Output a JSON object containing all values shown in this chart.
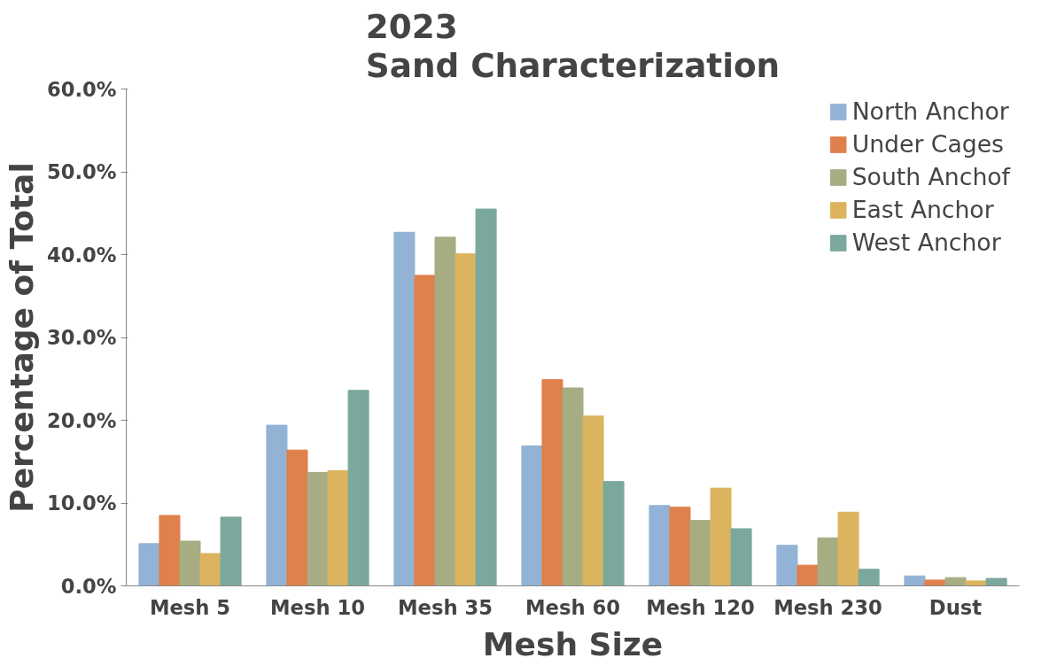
{
  "chart_data": {
    "type": "bar",
    "title": "2023\nSand Characterization",
    "xlabel": "Mesh Size",
    "ylabel": "Percentage of Total",
    "categories": [
      "Mesh 5",
      "Mesh 10",
      "Mesh 35",
      "Mesh 60",
      "Mesh 120",
      "Mesh 230",
      "Dust"
    ],
    "series": [
      {
        "name": "North Anchor",
        "color": "#93b3d6",
        "values": [
          5.1,
          19.4,
          42.7,
          16.9,
          9.7,
          4.9,
          1.2
        ]
      },
      {
        "name": "Under Cages",
        "color": "#e0804a",
        "values": [
          8.5,
          16.4,
          37.5,
          24.9,
          9.5,
          2.5,
          0.7
        ]
      },
      {
        "name": "South Anchof",
        "color": "#a6ad82",
        "values": [
          5.4,
          13.7,
          42.1,
          23.9,
          7.9,
          5.8,
          1.0
        ]
      },
      {
        "name": "East Anchor",
        "color": "#dcb45f",
        "values": [
          3.9,
          13.9,
          40.1,
          20.5,
          11.8,
          8.9,
          0.6
        ]
      },
      {
        "name": "West Anchor",
        "color": "#7aa89c",
        "values": [
          8.3,
          23.6,
          45.5,
          12.6,
          6.9,
          2.0,
          0.9
        ]
      }
    ],
    "ylim": [
      0,
      60
    ],
    "yticks": [
      {
        "value": 0,
        "label": "0.0%"
      },
      {
        "value": 10,
        "label": "10.0%"
      },
      {
        "value": 20,
        "label": "20.0%"
      },
      {
        "value": 30,
        "label": "30.0%"
      },
      {
        "value": 40,
        "label": "40.0%"
      },
      {
        "value": 50,
        "label": "50.0%"
      },
      {
        "value": 60,
        "label": "60.0%"
      }
    ],
    "grid": false,
    "legend": "top right"
  }
}
